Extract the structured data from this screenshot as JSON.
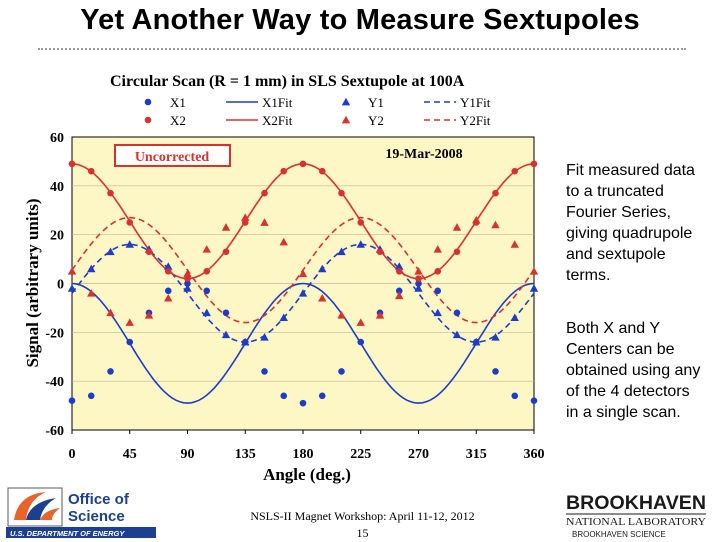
{
  "slide": {
    "title": "Yet Another Way to Measure Sextupoles",
    "notes": [
      "Fit measured data to a truncated Fourier Series, giving quadrupole and sextupole terms.",
      "Both X and Y Centers can be obtained using any of the 4 detectors in a single scan."
    ],
    "footer": {
      "workshop": "NSLS-II Magnet Workshop: April 11-12, 2012",
      "page": "15"
    },
    "logos": {
      "doe_line1": "Office of",
      "doe_line2": "Science",
      "doe_sub": "U.S. DEPARTMENT OF ENERGY",
      "bnl_main": "BROOKHAVEN",
      "bnl_sub": "NATIONAL LABORATORY",
      "bnl_small": "BROOKHAVEN SCIENCE"
    }
  },
  "colors": {
    "plot_bg": "#fdf7c5",
    "blue": "#1f3cc8",
    "red": "#d8322e"
  },
  "chart_data": {
    "type": "scatter",
    "title": "Circular Scan (R = 1 mm) in SLS Sextupole at 100A",
    "xlabel": "Angle (deg.)",
    "ylabel": "Signal (arbitrary units)",
    "xlim": [
      0,
      360
    ],
    "ylim": [
      -60,
      60
    ],
    "xticks": [
      0,
      45,
      90,
      135,
      180,
      225,
      270,
      315,
      360
    ],
    "yticks": [
      60,
      40,
      20,
      0,
      -20,
      -40,
      -60
    ],
    "annotations": {
      "stamp": "Uncorrected",
      "date": "19-Mar-2008"
    },
    "legend": [
      {
        "label": "X1",
        "kind": "point",
        "marker": "circle",
        "color": "#1f3cc8"
      },
      {
        "label": "X1Fit",
        "kind": "line",
        "dash": "solid",
        "color": "#1f3cc8"
      },
      {
        "label": "Y1",
        "kind": "point",
        "marker": "triangle",
        "color": "#1f3cc8"
      },
      {
        "label": "Y1Fit",
        "kind": "line",
        "dash": "dashed",
        "color": "#1f3cc8"
      },
      {
        "label": "X2",
        "kind": "point",
        "marker": "circle",
        "color": "#d8322e"
      },
      {
        "label": "X2Fit",
        "kind": "line",
        "dash": "solid",
        "color": "#d8322e"
      },
      {
        "label": "Y2",
        "kind": "point",
        "marker": "triangle",
        "color": "#d8322e"
      },
      {
        "label": "Y2Fit",
        "kind": "line",
        "dash": "dashed",
        "color": "#d8322e"
      }
    ],
    "x": [
      0,
      15,
      30,
      45,
      60,
      75,
      90,
      105,
      120,
      135,
      150,
      165,
      180,
      195,
      210,
      225,
      240,
      255,
      270,
      285,
      300,
      315,
      330,
      345,
      360
    ],
    "series": [
      {
        "name": "X1",
        "marker": "circle",
        "color": "#1f3cc8",
        "values": [
          -48,
          -46,
          -36,
          -24,
          -12,
          -3,
          0,
          -3,
          -12,
          -24,
          -36,
          -46,
          -49,
          -46,
          -36,
          -24,
          -12,
          -3,
          0,
          -3,
          -12,
          -24,
          -36,
          -46,
          -48
        ]
      },
      {
        "name": "Y1",
        "marker": "triangle",
        "color": "#1f3cc8",
        "values": [
          -2,
          6,
          13,
          16,
          14,
          7,
          -2,
          -12,
          -21,
          -24,
          -22,
          -14,
          -4,
          6,
          13,
          16,
          14,
          7,
          -2,
          -12,
          -21,
          -24,
          -22,
          -14,
          -2
        ]
      },
      {
        "name": "X2",
        "marker": "circle",
        "color": "#d8322e",
        "values": [
          49,
          46,
          37,
          25,
          13,
          5,
          2,
          5,
          13,
          25,
          37,
          46,
          49,
          46,
          37,
          25,
          13,
          5,
          2,
          5,
          13,
          25,
          37,
          46,
          49
        ]
      },
      {
        "name": "Y2",
        "marker": "triangle",
        "color": "#d8322e",
        "values": [
          5,
          -4,
          -12,
          -16,
          -13,
          -6,
          4,
          14,
          23,
          27,
          25,
          17,
          4,
          -6,
          -13,
          -16,
          -13,
          -5,
          5,
          14,
          23,
          26,
          24,
          16,
          5
        ]
      }
    ],
    "fits": [
      {
        "name": "X1Fit",
        "color": "#1f3cc8",
        "dash": "solid",
        "offset": -24.5,
        "amp": 24.5,
        "freq": 2,
        "phase": 0
      },
      {
        "name": "Y1Fit",
        "color": "#1f3cc8",
        "dash": "dashed",
        "offset": -4,
        "amp": 20,
        "freq": 2,
        "phase": 45
      },
      {
        "name": "X2Fit",
        "color": "#d8322e",
        "dash": "solid",
        "offset": 25.5,
        "amp": 23.5,
        "freq": 2,
        "phase": 180
      },
      {
        "name": "Y2Fit",
        "color": "#d8322e",
        "dash": "dashed",
        "offset": 5.5,
        "amp": 21.5,
        "freq": 2,
        "phase": 225
      }
    ]
  }
}
